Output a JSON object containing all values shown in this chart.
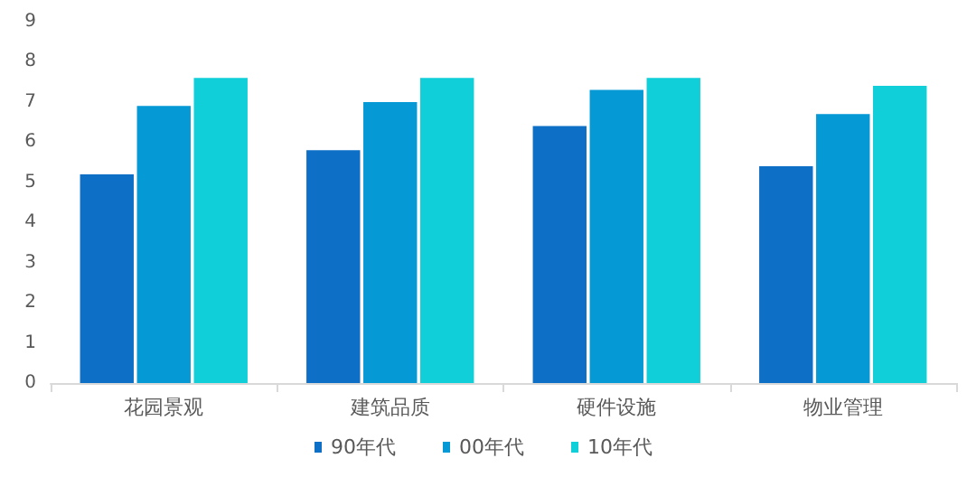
{
  "chart_data": {
    "type": "bar",
    "categories": [
      "花园景观",
      "建筑品质",
      "硬件设施",
      "物业管理"
    ],
    "series": [
      {
        "name": "90年代",
        "color": "#0e6fc6",
        "values": [
          5.2,
          5.8,
          6.4,
          5.4
        ]
      },
      {
        "name": "00年代",
        "color": "#0599d6",
        "values": [
          6.9,
          7.0,
          7.3,
          6.7
        ]
      },
      {
        "name": "10年代",
        "color": "#10cfd8",
        "values": [
          7.6,
          7.6,
          7.6,
          7.4
        ]
      }
    ],
    "ylim": [
      0,
      9
    ],
    "yticks": [
      0,
      1,
      2,
      3,
      4,
      5,
      6,
      7,
      8,
      9
    ],
    "grid": false,
    "legend": "bottom"
  }
}
